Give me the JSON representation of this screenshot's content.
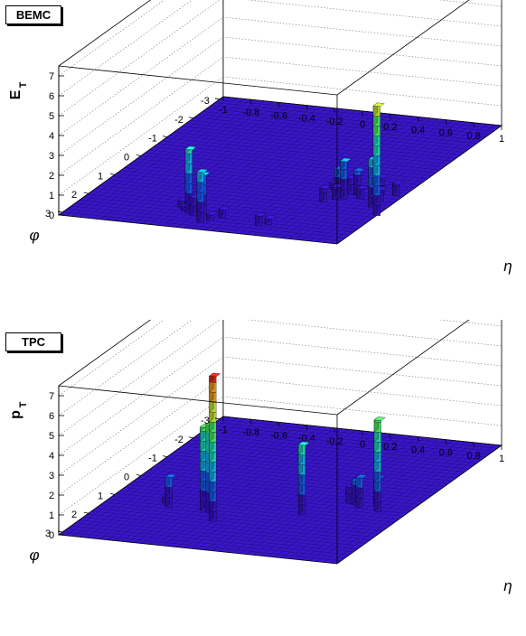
{
  "colors": {
    "floor": "#3a16c8",
    "floor_grid": "#14085e",
    "frame": "#000000",
    "grid": "#777777",
    "palette": [
      "#3814c8",
      "#1a5cf0",
      "#18b4f0",
      "#22e0c0",
      "#50f068",
      "#c8e83a",
      "#f0a020",
      "#e02818"
    ]
  },
  "chart_data": [
    {
      "type": "bar3d",
      "title": "BEMC",
      "zlabel": "E",
      "zlabel_sub": "T",
      "xlabel": "η",
      "ylabel": "φ",
      "xlim": [
        -1,
        1
      ],
      "ylim": [
        -3.14,
        3.14
      ],
      "zlim": [
        0,
        7.5
      ],
      "z_ticks": [
        "0",
        "1",
        "2",
        "3",
        "4",
        "5",
        "6",
        "7"
      ],
      "x_ticks": [
        "-1",
        "-0.8",
        "-0.6",
        "-0.4",
        "-0.2",
        "0",
        "0.2",
        "0.4",
        "0.6",
        "0.8",
        "1"
      ],
      "y_ticks": [
        "3",
        "2",
        "1",
        "0",
        "-1",
        "-2",
        "-3"
      ],
      "grid": true,
      "towers": [
        {
          "eta": -0.2,
          "phi": 2.35,
          "value": 3.2
        },
        {
          "eta": -0.15,
          "phi": 2.45,
          "value": 0.9
        },
        {
          "eta": -0.1,
          "phi": 2.35,
          "value": 2.0
        },
        {
          "eta": -0.05,
          "phi": 2.7,
          "value": 2.5
        },
        {
          "eta": 0.0,
          "phi": 2.6,
          "value": 0.3
        },
        {
          "eta": 0.05,
          "phi": 2.4,
          "value": 0.4
        },
        {
          "eta": -0.3,
          "phi": 2.1,
          "value": 0.3
        },
        {
          "eta": -0.25,
          "phi": 2.25,
          "value": 0.2
        },
        {
          "eta": 0.35,
          "phi": 2.6,
          "value": 0.5
        },
        {
          "eta": 0.4,
          "phi": 2.5,
          "value": 0.3
        },
        {
          "eta": 0.55,
          "phi": 1.2,
          "value": 0.7
        },
        {
          "eta": 0.6,
          "phi": 1.0,
          "value": 0.6
        },
        {
          "eta": 0.6,
          "phi": 0.9,
          "value": 1.4
        },
        {
          "eta": 0.65,
          "phi": 0.95,
          "value": 1.9
        },
        {
          "eta": 0.7,
          "phi": 0.7,
          "value": 1.2
        },
        {
          "eta": 0.65,
          "phi": 0.7,
          "value": 0.8
        },
        {
          "eta": 0.75,
          "phi": 0.85,
          "value": 0.5
        },
        {
          "eta": 0.85,
          "phi": 0.6,
          "value": 0.9
        },
        {
          "eta": 0.9,
          "phi": 1.2,
          "value": 2.4
        },
        {
          "eta": 0.9,
          "phi": 0.9,
          "value": 0.6
        },
        {
          "eta": 0.95,
          "phi": 0.55,
          "value": 0.6
        },
        {
          "eta": 1.0,
          "phi": 1.55,
          "value": 5.5
        },
        {
          "eta": 0.5,
          "phi": 0.55,
          "value": 0.3
        }
      ]
    },
    {
      "type": "bar3d",
      "title": "TPC",
      "zlabel": "p",
      "zlabel_sub": "T",
      "xlabel": "η",
      "ylabel": "φ",
      "xlim": [
        -1,
        1
      ],
      "ylim": [
        -3.14,
        3.14
      ],
      "zlim": [
        0,
        7.5
      ],
      "z_ticks": [
        "0",
        "1",
        "2",
        "3",
        "4",
        "5",
        "6",
        "7"
      ],
      "x_ticks": [
        "-1",
        "-0.8",
        "-0.6",
        "-0.4",
        "-0.2",
        "0",
        "0.2",
        "0.4",
        "0.6",
        "0.8",
        "1"
      ],
      "y_ticks": [
        "3",
        "2",
        "1",
        "0",
        "-1",
        "-2",
        "-3"
      ],
      "grid": true,
      "towers": [
        {
          "eta": -0.55,
          "phi": 1.25,
          "value": 1.5
        },
        {
          "eta": -0.3,
          "phi": 1.25,
          "value": 4.2
        },
        {
          "eta": -0.25,
          "phi": 1.3,
          "value": 4.4
        },
        {
          "eta": -0.15,
          "phi": 1.7,
          "value": 7.3
        },
        {
          "eta": -0.6,
          "phi": 1.1,
          "value": 0.3
        },
        {
          "eta": 0.35,
          "phi": 0.95,
          "value": 3.5
        },
        {
          "eta": 0.55,
          "phi": 0.2,
          "value": 0.8
        },
        {
          "eta": 0.6,
          "phi": 0.25,
          "value": 1.2
        },
        {
          "eta": 0.65,
          "phi": 0.35,
          "value": 1.5
        },
        {
          "eta": 0.75,
          "phi": 0.2,
          "value": 1.4
        },
        {
          "eta": 0.8,
          "phi": 0.45,
          "value": 4.6
        }
      ]
    }
  ]
}
